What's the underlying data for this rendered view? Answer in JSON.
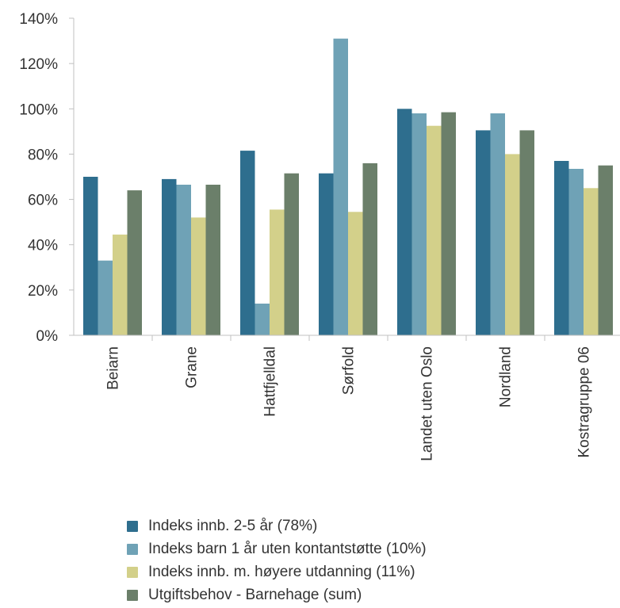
{
  "chart_data": {
    "type": "bar",
    "categories": [
      "Beiarn",
      "Grane",
      "Hattfjelldal",
      "Sørfold",
      "Landet uten Oslo",
      "Nordland",
      "Kostragruppe 06"
    ],
    "yticks": [
      "0%",
      "20%",
      "40%",
      "60%",
      "80%",
      "100%",
      "120%",
      "140%"
    ],
    "ylim": [
      0,
      140
    ],
    "grid": false,
    "legend_position": "bottom",
    "series": [
      {
        "name": "Indeks innb. 2-5 år (78%)",
        "color": "#2e6e8e",
        "values": [
          70,
          69,
          81.5,
          71.5,
          100,
          90.5,
          77
        ]
      },
      {
        "name": "Indeks barn 1 år uten kontantstøtte (10%)",
        "color": "#6fa2b6",
        "values": [
          33,
          66.5,
          14,
          131,
          98,
          98,
          73.5
        ]
      },
      {
        "name": "Indeks innb. m. høyere utdanning (11%)",
        "color": "#d3d08a",
        "values": [
          44.5,
          52,
          55.5,
          54.5,
          92.5,
          80,
          65
        ]
      },
      {
        "name": "Utgiftsbehov - Barnehage (sum)",
        "color": "#6b7f6a",
        "values": [
          64,
          66.5,
          71.5,
          76,
          98.5,
          90.5,
          75
        ]
      }
    ]
  }
}
